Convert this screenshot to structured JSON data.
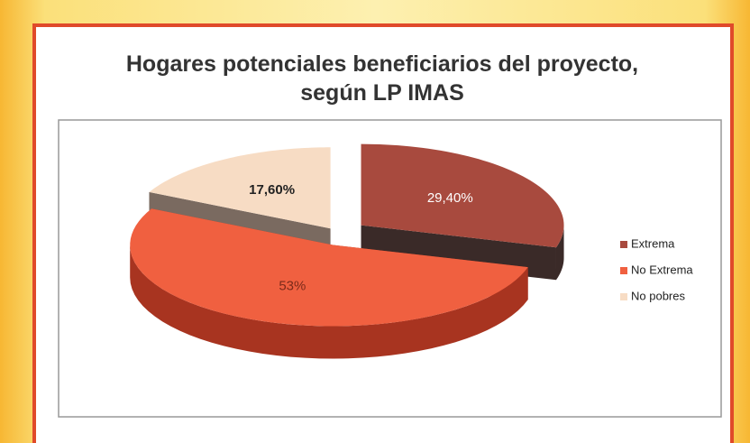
{
  "chart_data": {
    "type": "pie3d",
    "title": "Hogares potenciales beneficiarios del proyecto, según LP IMAS",
    "categories": [
      "Extrema",
      "No Extrema",
      "No pobres"
    ],
    "values": [
      29.4,
      53,
      17.6
    ],
    "value_labels": [
      "29,40%",
      "53%",
      "17,60%"
    ],
    "colors": [
      "#a84a3e",
      "#f06040",
      "#f7dcc4"
    ],
    "side_colors": [
      "#3a2a28",
      "#a83420",
      "#7a6a60"
    ],
    "label_colors": [
      "#ffffff",
      "#7a2a1a",
      "#222222"
    ],
    "legend": "right"
  }
}
